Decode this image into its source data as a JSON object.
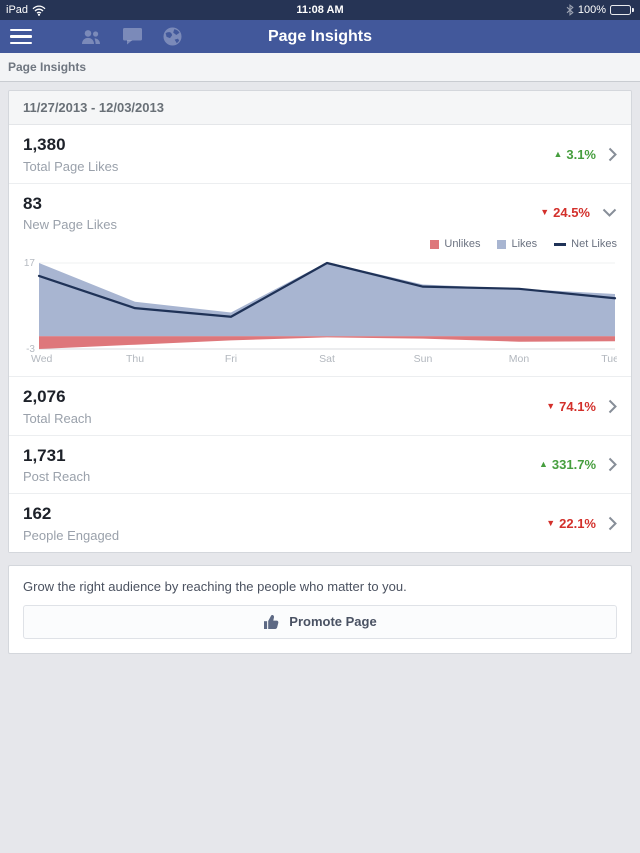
{
  "status_bar": {
    "carrier": "iPad",
    "time": "11:08 AM",
    "battery_percent": "100%"
  },
  "nav": {
    "title": "Page Insights"
  },
  "breadcrumb": {
    "label": "Page Insights"
  },
  "insights": {
    "date_range": "11/27/2013 - 12/03/2013",
    "metrics": [
      {
        "value": "1,380",
        "label": "Total Page Likes",
        "arrow": "▲",
        "change": "3.1%",
        "direction": "up"
      },
      {
        "value": "83",
        "label": "New Page Likes",
        "arrow": "▼",
        "change": "24.5%",
        "direction": "down"
      },
      {
        "value": "2,076",
        "label": "Total Reach",
        "arrow": "▼",
        "change": "74.1%",
        "direction": "down"
      },
      {
        "value": "1,731",
        "label": "Post Reach",
        "arrow": "▲",
        "change": "331.7%",
        "direction": "up"
      },
      {
        "value": "162",
        "label": "People Engaged",
        "arrow": "▼",
        "change": "22.1%",
        "direction": "down"
      }
    ]
  },
  "chart_data": {
    "type": "area",
    "title": "",
    "categories": [
      "Wed",
      "Thu",
      "Fri",
      "Sat",
      "Sun",
      "Mon",
      "Tue"
    ],
    "series": [
      {
        "name": "Unlikes",
        "type": "area",
        "color": "#de777b",
        "values": [
          -3,
          -2,
          -1,
          -0.3,
          -0.6,
          -1.3,
          -1.2
        ]
      },
      {
        "name": "Likes",
        "type": "area",
        "color": "#a8b5d1",
        "values": [
          17,
          8,
          5.5,
          17.2,
          12,
          11,
          9.8
        ]
      },
      {
        "name": "Net Likes",
        "type": "line",
        "color": "#1f3257",
        "values": [
          14,
          6.5,
          4.5,
          17,
          11.5,
          11,
          8.8
        ]
      }
    ],
    "ylim": [
      -3,
      17
    ],
    "y_ticks": [
      "17",
      "-3"
    ],
    "legend_position": "top-right",
    "grid": false
  },
  "promo": {
    "text": "Grow the right audience by reaching the people who matter to you.",
    "button_label": "Promote Page"
  },
  "colors": {
    "nav_blue": "#42589b",
    "status_navy": "#263455",
    "positive_green": "#469e3e",
    "negative_red": "#d3302b",
    "likes_fill": "#a8b5d1",
    "unlikes_fill": "#de777b",
    "net_line": "#1f3257"
  }
}
